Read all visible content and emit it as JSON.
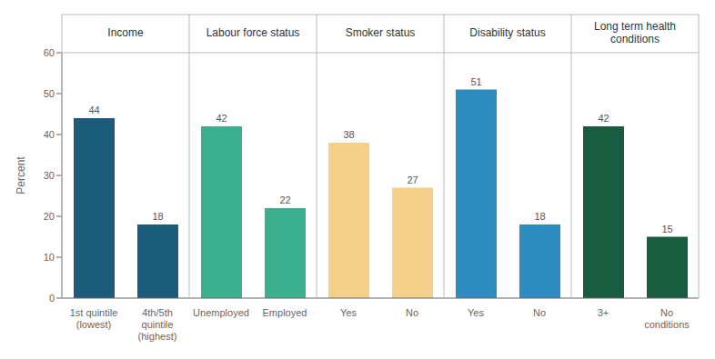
{
  "chart_data": {
    "type": "bar",
    "groups": [
      {
        "title": "Income",
        "categories": [
          "1st quintile\n(lowest)",
          "4th/5th\nquintile\n(highest)"
        ],
        "values": [
          44,
          18
        ],
        "color": "#1B5C7A"
      },
      {
        "title": "Labour force status",
        "categories": [
          "Unemployed",
          "Employed"
        ],
        "values": [
          42,
          22
        ],
        "color": "#3BAF8E"
      },
      {
        "title": "Smoker status",
        "categories": [
          "Yes",
          "No"
        ],
        "values": [
          38,
          27
        ],
        "color": "#F5D08A"
      },
      {
        "title": "Disability status",
        "categories": [
          "Yes",
          "No"
        ],
        "values": [
          51,
          18
        ],
        "color": "#2E8BC0"
      },
      {
        "title": "Long term health\nconditions",
        "categories": [
          "3+",
          "No\nconditions"
        ],
        "values": [
          42,
          15
        ],
        "color": "#1A5C40"
      }
    ],
    "ylabel": "Percent",
    "ylim": [
      0,
      60
    ],
    "yticks": [
      0,
      10,
      20,
      30,
      40,
      50,
      60
    ],
    "data_labels": true,
    "grid": false
  }
}
